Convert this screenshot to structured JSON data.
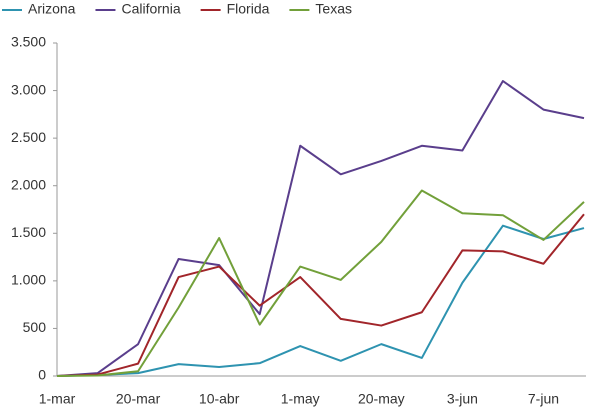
{
  "chart_data": {
    "type": "line",
    "categories": [
      "1-mar",
      null,
      "20-mar",
      null,
      "10-abr",
      null,
      "1-may",
      null,
      "20-may",
      null,
      "3-jun",
      null,
      "7-jun",
      null
    ],
    "series": [
      {
        "name": "Arizona",
        "color": "#2e93b0",
        "values": [
          0,
          10,
          30,
          125,
          95,
          135,
          315,
          160,
          335,
          190,
          980,
          1580,
          1440,
          1555
        ]
      },
      {
        "name": "California",
        "color": "#5a3e8c",
        "values": [
          0,
          30,
          335,
          1230,
          1165,
          650,
          2420,
          2120,
          2260,
          2420,
          2370,
          3100,
          2800,
          2710
        ]
      },
      {
        "name": "Florida",
        "color": "#a1252a",
        "values": [
          0,
          15,
          130,
          1040,
          1150,
          740,
          1040,
          600,
          530,
          670,
          1320,
          1310,
          1180,
          1700
        ]
      },
      {
        "name": "Texas",
        "color": "#72a03a",
        "values": [
          0,
          5,
          50,
          720,
          1450,
          540,
          1150,
          1010,
          1410,
          1950,
          1710,
          1690,
          1430,
          1830
        ]
      }
    ],
    "ylim": [
      0,
      3500
    ],
    "yticks": [
      0,
      500,
      {
        "value": 1000,
        "label": "1.000"
      },
      {
        "value": 1500,
        "label": "1.500"
      },
      {
        "value": 2000,
        "label": "2.000"
      },
      {
        "value": 2500,
        "label": "2.500"
      },
      {
        "value": 3000,
        "label": "3.000"
      },
      {
        "value": 3500,
        "label": "3.500"
      }
    ],
    "legend": "top-left"
  }
}
